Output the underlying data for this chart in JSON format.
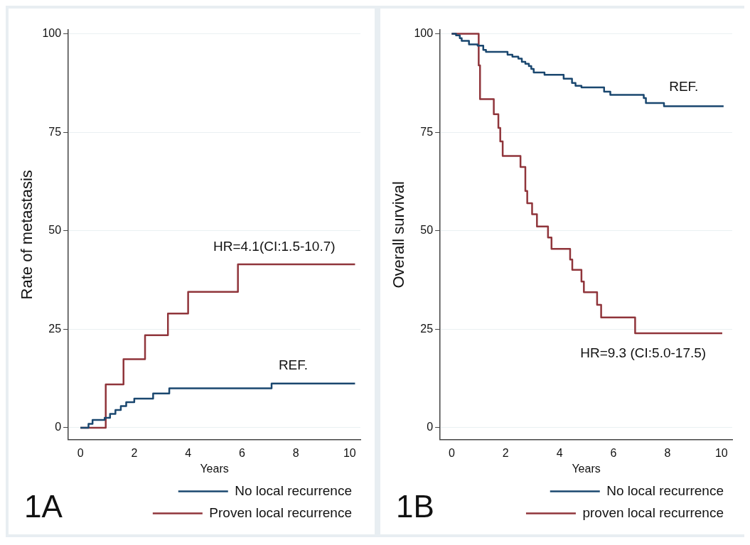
{
  "chart_data": [
    {
      "type": "step",
      "title": "1A",
      "xlabel": "Years",
      "ylabel": "Rate of metastasis",
      "xlim": [
        -0.45,
        10.4
      ],
      "xticks": [
        0,
        2,
        4,
        6,
        8,
        10
      ],
      "ylim": [
        -3,
        101
      ],
      "yticks": [
        0,
        25,
        50,
        75,
        100
      ],
      "grid": "y",
      "legend": "bottom",
      "series": [
        {
          "name": "No local recurrence",
          "color": "#1a476f",
          "x": [
            0,
            0.3,
            0.45,
            0.9,
            1.1,
            1.3,
            1.5,
            1.7,
            2.0,
            2.7,
            3.3,
            7.1,
            10.2
          ],
          "values": [
            0,
            1,
            2,
            2.5,
            3.5,
            4.5,
            5.5,
            6.5,
            7.4,
            8.7,
            10,
            11.2,
            11.2
          ]
        },
        {
          "name": "Proven local recurrence",
          "color": "#90353b",
          "x": [
            0,
            0.94,
            1.6,
            2.4,
            3.25,
            4.0,
            5.85,
            10.2
          ],
          "values": [
            0,
            11,
            17.4,
            23.5,
            29,
            34.5,
            41.5,
            41.5
          ]
        }
      ],
      "annotations": [
        "HR=4.1(CI:1.5-10.7)",
        "REF."
      ]
    },
    {
      "type": "step",
      "title": "1B",
      "xlabel": "Years",
      "ylabel": "Overall survival",
      "xlim": [
        -0.43,
        10.4
      ],
      "xticks": [
        0,
        2,
        4,
        6,
        8,
        10
      ],
      "ylim": [
        -3,
        101
      ],
      "yticks": [
        0,
        25,
        50,
        75,
        100
      ],
      "grid": "y",
      "legend": "bottom",
      "series": [
        {
          "name": "No local recurrence",
          "color": "#1a476f",
          "x": [
            0,
            0.16,
            0.3,
            0.37,
            0.64,
            0.96,
            1.17,
            1.27,
            2.07,
            2.25,
            2.47,
            2.6,
            2.73,
            2.86,
            2.95,
            3.04,
            3.44,
            4.15,
            4.46,
            4.59,
            4.81,
            5.65,
            5.88,
            7.12,
            7.2,
            7.87,
            10.08
          ],
          "values": [
            100,
            99.6,
            98.9,
            98.2,
            97.3,
            97,
            95.9,
            95.4,
            94.7,
            94.2,
            93.7,
            92.9,
            92.4,
            91.8,
            91.1,
            90.2,
            89.6,
            88.6,
            87.5,
            86.8,
            86.4,
            85.3,
            84.5,
            83.7,
            82.4,
            81.6,
            81.6
          ]
        },
        {
          "name": "proven local recurrence",
          "color": "#90353b",
          "x": [
            0,
            1.0,
            1.05,
            1.56,
            1.73,
            1.8,
            1.89,
            2.55,
            2.73,
            2.8,
            2.98,
            3.16,
            3.57,
            3.7,
            4.39,
            4.47,
            4.81,
            4.9,
            5.39,
            5.54,
            6.8,
            10.03
          ],
          "values": [
            100,
            92,
            83.4,
            79.6,
            76.1,
            72.7,
            69,
            66.2,
            60.1,
            57,
            54.2,
            51.1,
            48.3,
            45.4,
            42.7,
            40.1,
            37.1,
            34.4,
            31.2,
            28,
            24,
            24
          ]
        }
      ],
      "annotations": [
        "REF.",
        "HR=9.3 (CI:5.0-17.5)"
      ]
    }
  ]
}
